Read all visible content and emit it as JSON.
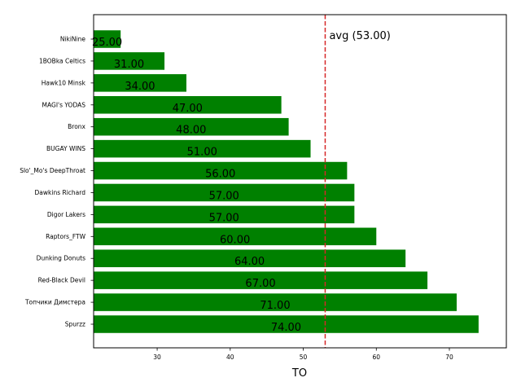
{
  "chart_data": {
    "type": "bar",
    "orientation": "horizontal",
    "categories": [
      "NikiNine",
      "1BOBka Celtics",
      "Hawk10 Minsk",
      "MAGI's YODAS",
      "Bronx",
      "BUGAY WINS",
      "Slo'_Mo's DeepThroat",
      "Dawkins Richard",
      "Digor Lakers",
      "Raptors_FTW",
      "Dunking Donuts",
      "Red-Black Devil",
      "Топчики Димстера",
      "Spurzz"
    ],
    "values": [
      25,
      31,
      34,
      47,
      48,
      51,
      56,
      57,
      57,
      60,
      64,
      67,
      71,
      74
    ],
    "value_labels": [
      "25.00",
      "31.00",
      "34.00",
      "47.00",
      "48.00",
      "51.00",
      "56.00",
      "57.00",
      "57.00",
      "60.00",
      "64.00",
      "67.00",
      "71.00",
      "74.00"
    ],
    "xlabel": "TO",
    "ylabel": "",
    "title": "",
    "xlim": [
      21.3,
      77.8
    ],
    "xticks": [
      30,
      40,
      50,
      60,
      70
    ],
    "reference_line": {
      "value": 53,
      "label": "avg (53.00)",
      "color": "#d62728",
      "style": "dashed"
    },
    "bar_color": "#008000",
    "grid": false,
    "legend": "none"
  }
}
